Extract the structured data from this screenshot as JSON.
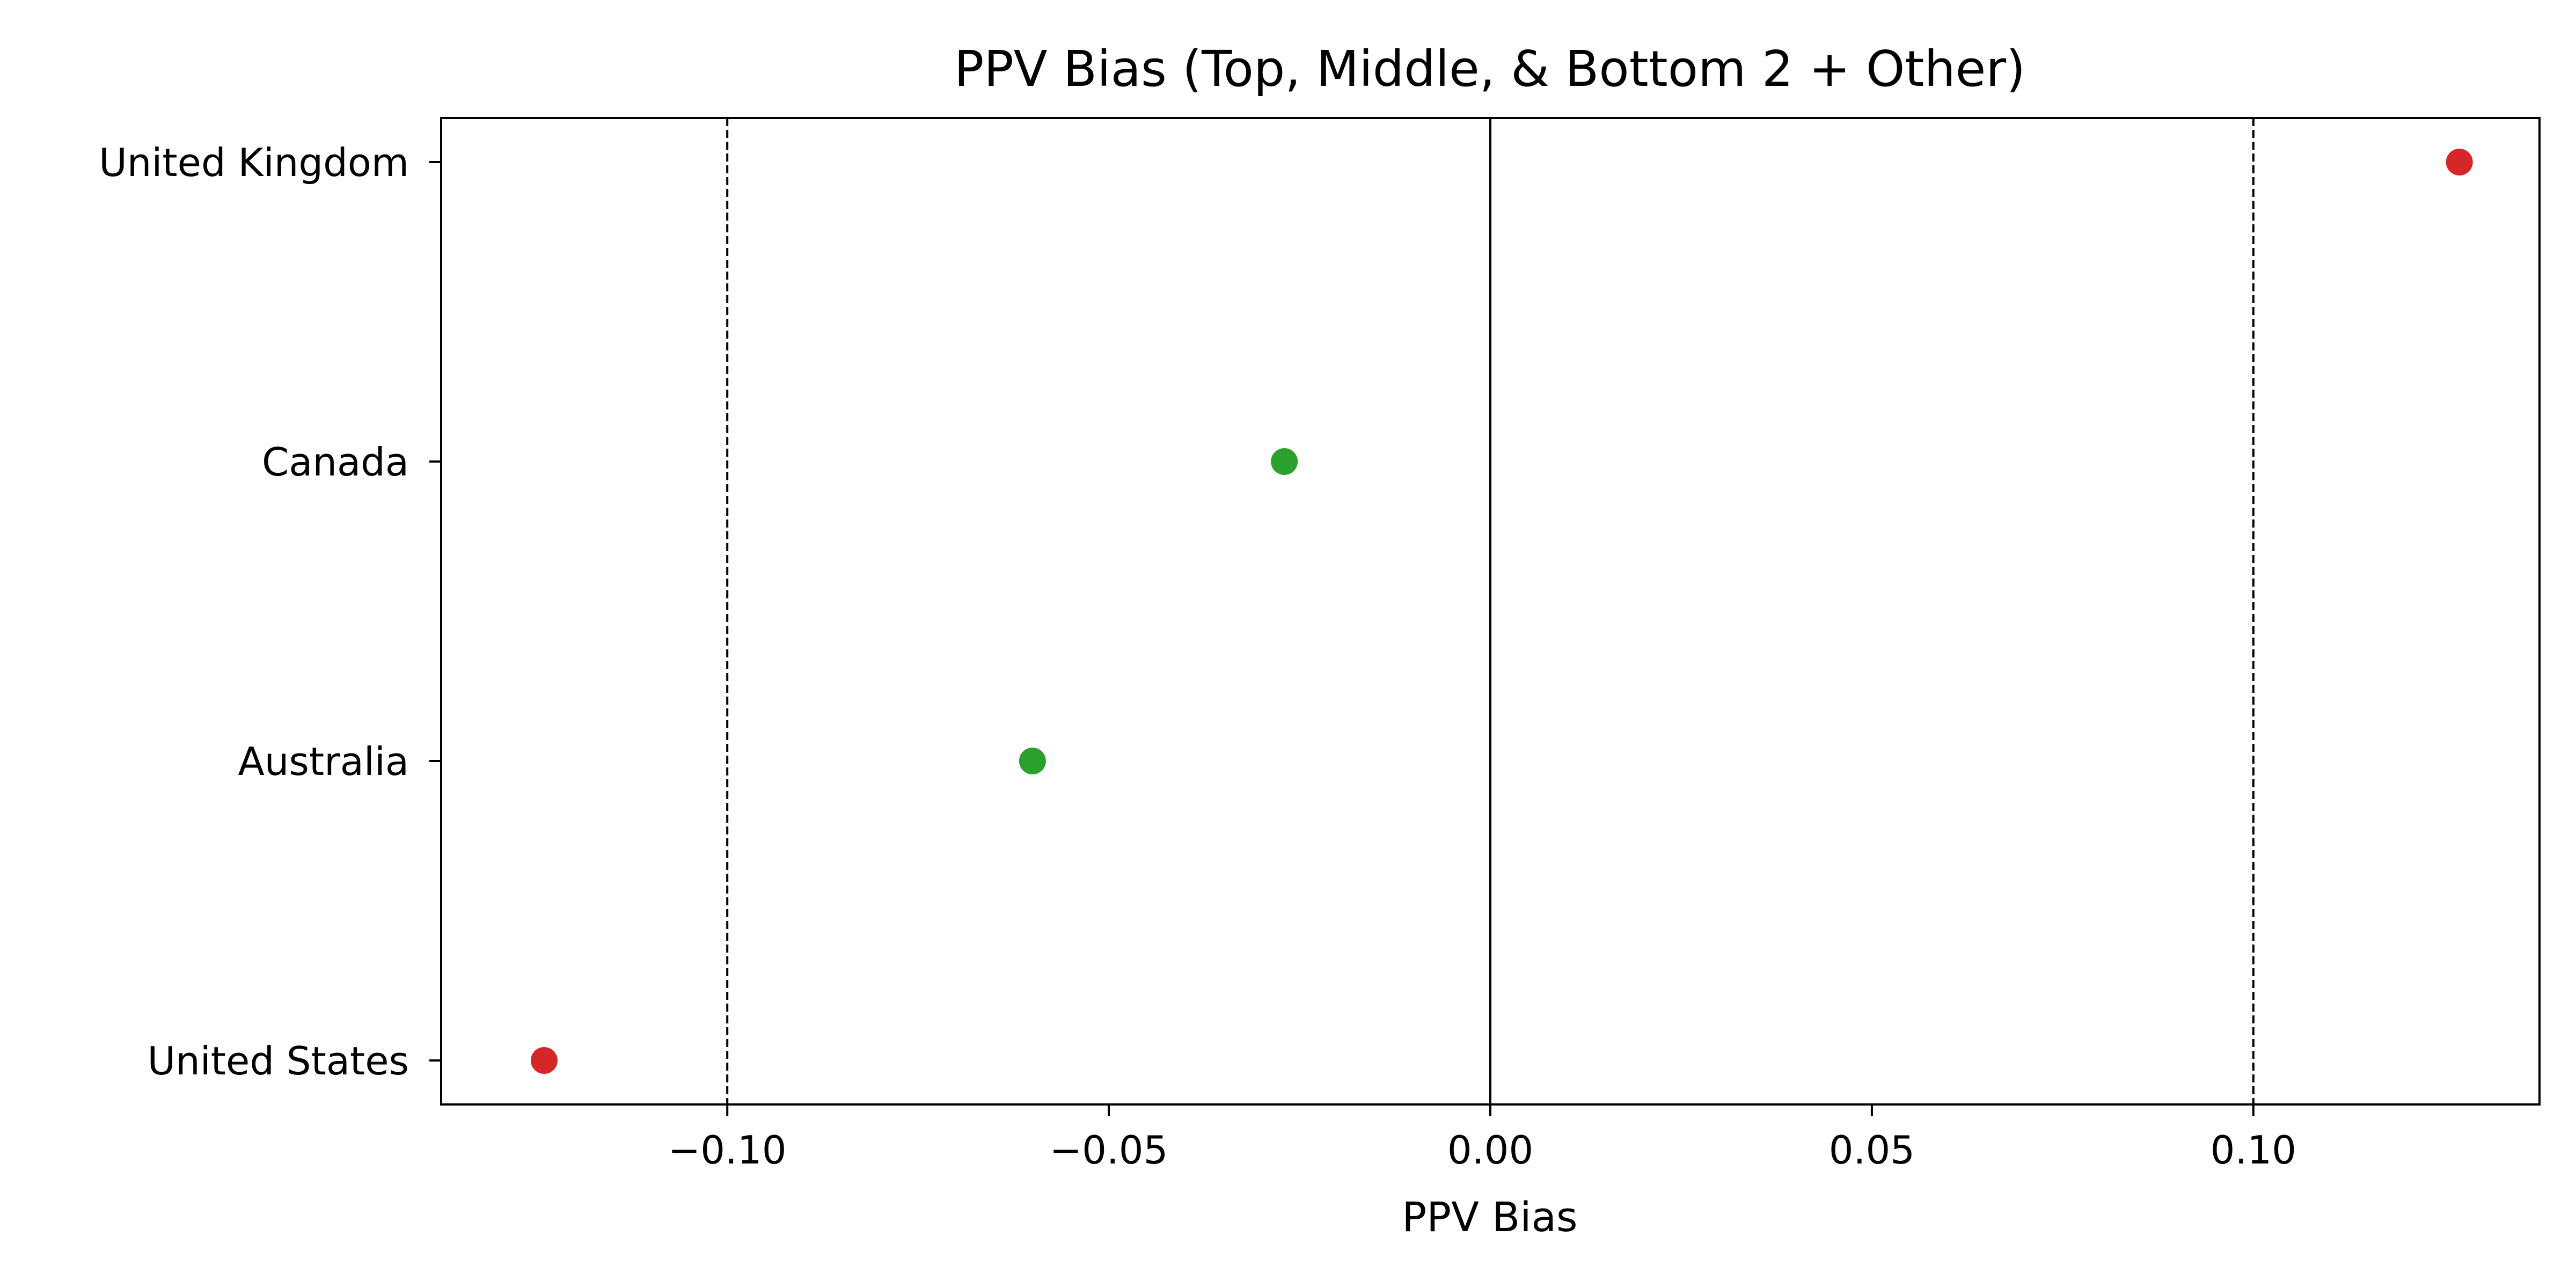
{
  "chart_data": {
    "type": "scatter",
    "title": "PPV Bias (Top, Middle, & Bottom 2 + Other)",
    "xlabel": "PPV Bias",
    "ylabel": "",
    "xlim": [
      -0.1375,
      0.1375
    ],
    "categories": [
      "United Kingdom",
      "Canada",
      "Australia",
      "United States"
    ],
    "points": [
      {
        "category": "United Kingdom",
        "x": 0.127,
        "color": "#d62728"
      },
      {
        "category": "Canada",
        "x": -0.027,
        "color": "#2ca02c"
      },
      {
        "category": "Australia",
        "x": -0.06,
        "color": "#2ca02c"
      },
      {
        "category": "United States",
        "x": -0.124,
        "color": "#d62728"
      }
    ],
    "x_ticks": [
      {
        "value": -0.1,
        "label": "−0.10"
      },
      {
        "value": -0.05,
        "label": "−0.05"
      },
      {
        "value": 0.0,
        "label": "0.00"
      },
      {
        "value": 0.05,
        "label": "0.05"
      },
      {
        "value": 0.1,
        "label": "0.10"
      }
    ],
    "reference_lines": [
      {
        "x": -0.1,
        "style": "dashed"
      },
      {
        "x": 0.0,
        "style": "solid"
      },
      {
        "x": 0.1,
        "style": "dashed"
      }
    ],
    "grid": false,
    "legend": "none"
  }
}
